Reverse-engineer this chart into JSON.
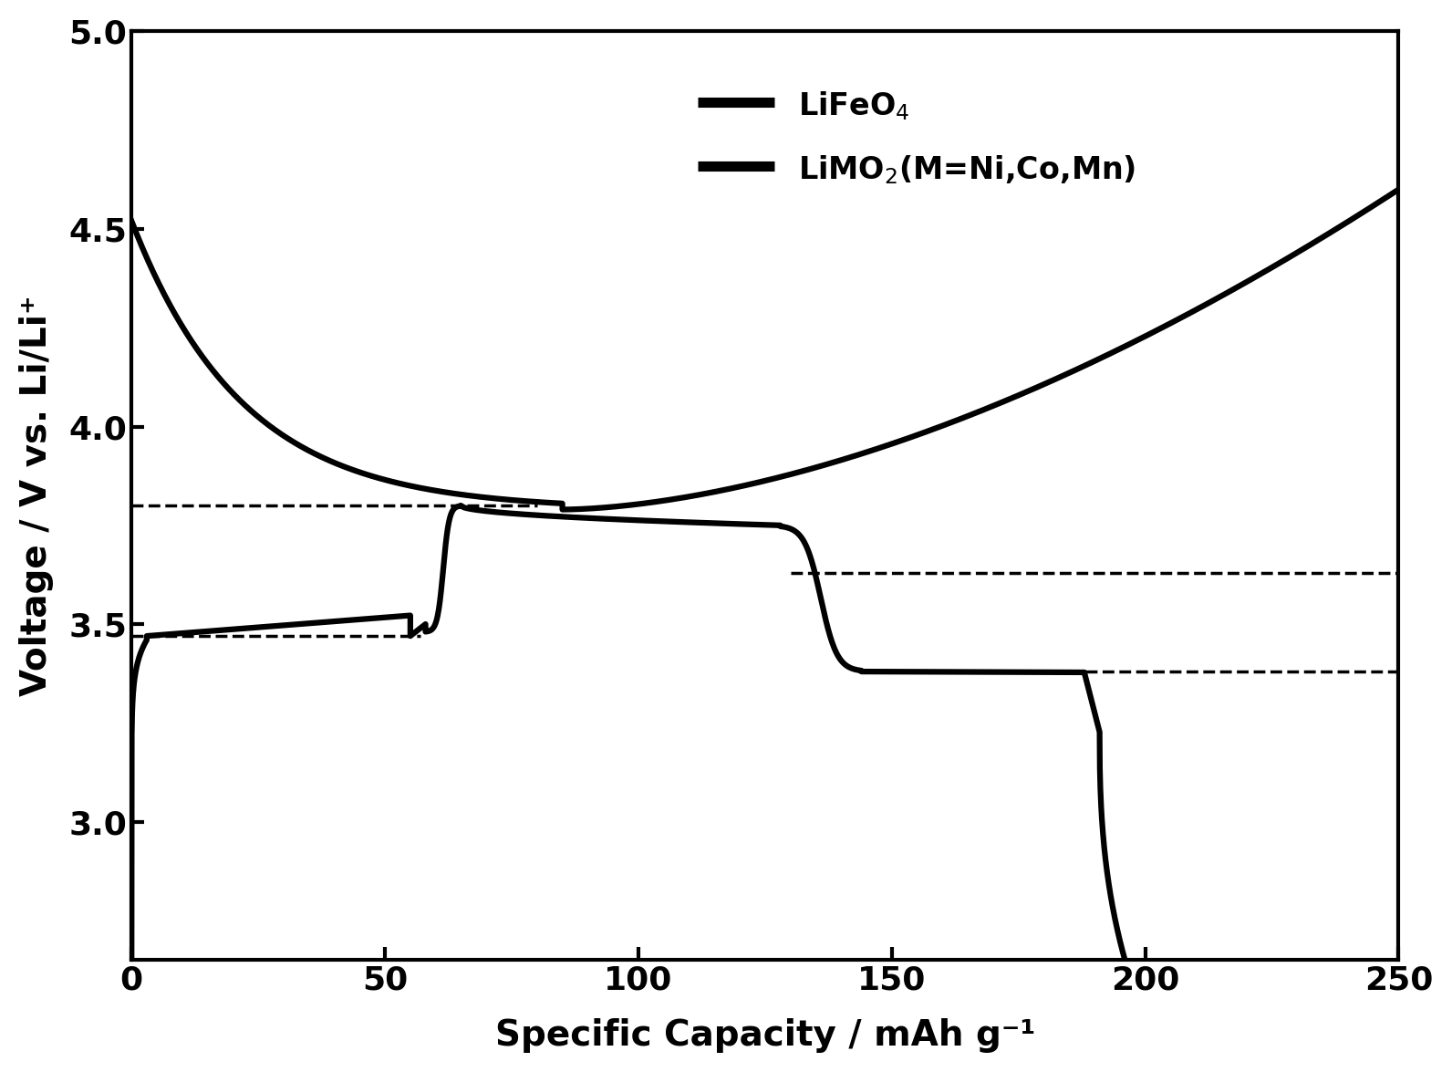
{
  "title": "",
  "xlabel": "Specific Capacity / mAh g⁻¹",
  "ylabel": "Voltage / V vs. Li/Li⁺",
  "xlim": [
    0,
    250
  ],
  "ylim": [
    2.65,
    5.0
  ],
  "yticks": [
    3.0,
    3.5,
    4.0,
    4.5,
    5.0
  ],
  "xticks": [
    0,
    50,
    100,
    150,
    200,
    250
  ],
  "line_color": "#000000",
  "background_color": "#ffffff",
  "linewidth": 4.5,
  "dashed_linewidth": 2.5,
  "dashed_line1_y": 3.8,
  "dashed_line1_x1": 0,
  "dashed_line1_x2": 80,
  "dashed_line2_y": 3.47,
  "dashed_line2_x1": 0,
  "dashed_line2_x2": 57,
  "dashed_line3_y": 3.63,
  "dashed_line3_x1": 130,
  "dashed_line3_x2": 250,
  "dashed_line4_y": 3.38,
  "dashed_line4_x1": 155,
  "dashed_line4_x2": 250,
  "legend_label1": "LiFeO$_4$",
  "legend_label2": "LiMO$_2$(M=Ni,Co,Mn)"
}
